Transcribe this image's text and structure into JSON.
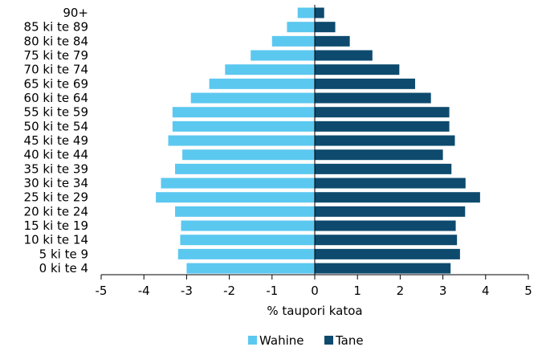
{
  "chart_data": {
    "type": "bar",
    "orientation": "horizontal",
    "title": "",
    "xlabel": "% taupori katoa",
    "ylabel": "",
    "xlim": [
      -5,
      5
    ],
    "xticks": [
      "-5",
      "-4",
      "-3",
      "-2",
      "-1",
      "0",
      "1",
      "2",
      "3",
      "4",
      "5"
    ],
    "categories": [
      "0 ki te 4",
      "5 ki te 9",
      "10 ki te 14",
      "15 ki te 19",
      "20 ki te 24",
      "25 ki te 29",
      "30 ki te 34",
      "35 ki te 39",
      "40 ki te 44",
      "45 ki te 49",
      "50 ki te 54",
      "55 ki te 59",
      "60 ki te 64",
      "65 ki te 69",
      "70 ki te 74",
      "75 ki te 79",
      "80 ki te 84",
      "85 ki te 89",
      "90+"
    ],
    "series": [
      {
        "name": "Wahine",
        "color": "#5bc8f0",
        "values": [
          -3.0,
          -3.2,
          -3.15,
          -3.13,
          -3.27,
          -3.72,
          -3.6,
          -3.27,
          -3.1,
          -3.43,
          -3.33,
          -3.33,
          -2.9,
          -2.47,
          -2.1,
          -1.5,
          -1.0,
          -0.65,
          -0.4
        ]
      },
      {
        "name": "Tane",
        "color": "#0d4a6e",
        "values": [
          3.18,
          3.4,
          3.33,
          3.3,
          3.52,
          3.87,
          3.53,
          3.2,
          3.0,
          3.28,
          3.15,
          3.15,
          2.72,
          2.35,
          1.98,
          1.35,
          0.82,
          0.48,
          0.22
        ]
      }
    ],
    "grid": false,
    "legend": "bottom"
  }
}
